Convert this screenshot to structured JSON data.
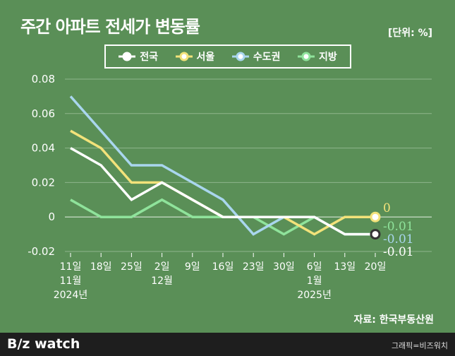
{
  "title": "주간 아파트 전세가 변동률",
  "unit": "[단위: %]",
  "source": "자료: 한국부동산원",
  "footer": {
    "brand": "B/z watch",
    "credit": "그래픽=비즈워치"
  },
  "colors": {
    "background": "#5a8f57",
    "전국": "#ffffff",
    "서울": "#f2e27a",
    "수도권": "#a9d6ee",
    "지방": "#8fe39b"
  },
  "chart_data": {
    "type": "line",
    "title": "주간 아파트 전세가 변동률",
    "ylim": [
      -0.02,
      0.08
    ],
    "yticks": [
      "0.08",
      "0.06",
      "0.04",
      "0.02",
      "0",
      "-0.02"
    ],
    "categories": [
      "11일",
      "18일",
      "25일",
      "2일",
      "9일",
      "16일",
      "23일",
      "30일",
      "6일",
      "13일",
      "20일"
    ],
    "month_labels": [
      {
        "index": 0,
        "text": "11월"
      },
      {
        "index": 3,
        "text": "12월"
      },
      {
        "index": 8,
        "text": "1월"
      }
    ],
    "year_labels": [
      {
        "index": 0,
        "text": "2024년"
      },
      {
        "index": 8,
        "text": "2025년"
      }
    ],
    "grid": true,
    "legend": "top",
    "series": [
      {
        "name": "전국",
        "color": "#ffffff",
        "values": [
          0.04,
          0.03,
          0.01,
          0.02,
          0.01,
          0.0,
          0.0,
          0.0,
          0.0,
          -0.01,
          -0.01
        ],
        "end_label": "-0.01"
      },
      {
        "name": "서울",
        "color": "#f2e27a",
        "values": [
          0.05,
          0.04,
          0.02,
          0.02,
          0.01,
          0.0,
          0.0,
          0.0,
          -0.01,
          0.0,
          0.0
        ],
        "end_label": "0"
      },
      {
        "name": "수도권",
        "color": "#a9d6ee",
        "values": [
          0.07,
          0.05,
          0.03,
          0.03,
          0.02,
          0.01,
          -0.01,
          0.0,
          0.0,
          -0.01,
          -0.01
        ],
        "end_label": "-0.01"
      },
      {
        "name": "지방",
        "color": "#8fe39b",
        "values": [
          0.01,
          0.0,
          0.0,
          0.01,
          0.0,
          0.0,
          0.0,
          -0.01,
          0.0,
          -0.01,
          -0.01
        ],
        "end_label": "-0.01"
      }
    ]
  }
}
